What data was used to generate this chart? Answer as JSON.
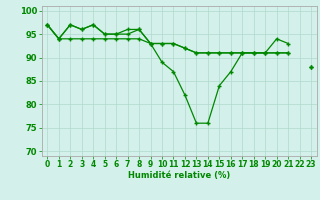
{
  "xlabel": "Humidité relative (%)",
  "background_color": "#d4f0ea",
  "grid_color": "#b0d8cc",
  "line_color": "#008800",
  "marker": "+",
  "xlim": [
    -0.5,
    23.5
  ],
  "ylim": [
    69,
    101
  ],
  "yticks": [
    70,
    75,
    80,
    85,
    90,
    95,
    100
  ],
  "xticks": [
    0,
    1,
    2,
    3,
    4,
    5,
    6,
    7,
    8,
    9,
    10,
    11,
    12,
    13,
    14,
    15,
    16,
    17,
    18,
    19,
    20,
    21,
    22,
    23
  ],
  "y1": [
    97,
    94,
    97,
    96,
    97,
    95,
    95,
    95,
    96,
    93,
    89,
    87,
    82,
    76,
    76,
    84,
    87,
    91,
    91,
    91,
    94,
    93,
    null,
    88
  ],
  "y2": [
    97,
    94,
    97,
    96,
    97,
    95,
    95,
    96,
    96,
    93,
    93,
    93,
    92,
    91,
    91,
    91,
    91,
    91,
    91,
    91,
    91,
    91,
    null,
    88
  ],
  "y3": [
    97,
    94,
    94,
    94,
    94,
    94,
    94,
    94,
    94,
    93,
    93,
    93,
    92,
    91,
    91,
    91,
    91,
    91,
    91,
    91,
    91,
    91,
    null,
    88
  ],
  "xlabel_fontsize": 6,
  "tick_fontsize": 5.5,
  "lw": 0.9,
  "ms": 3.5,
  "mew": 1.0
}
